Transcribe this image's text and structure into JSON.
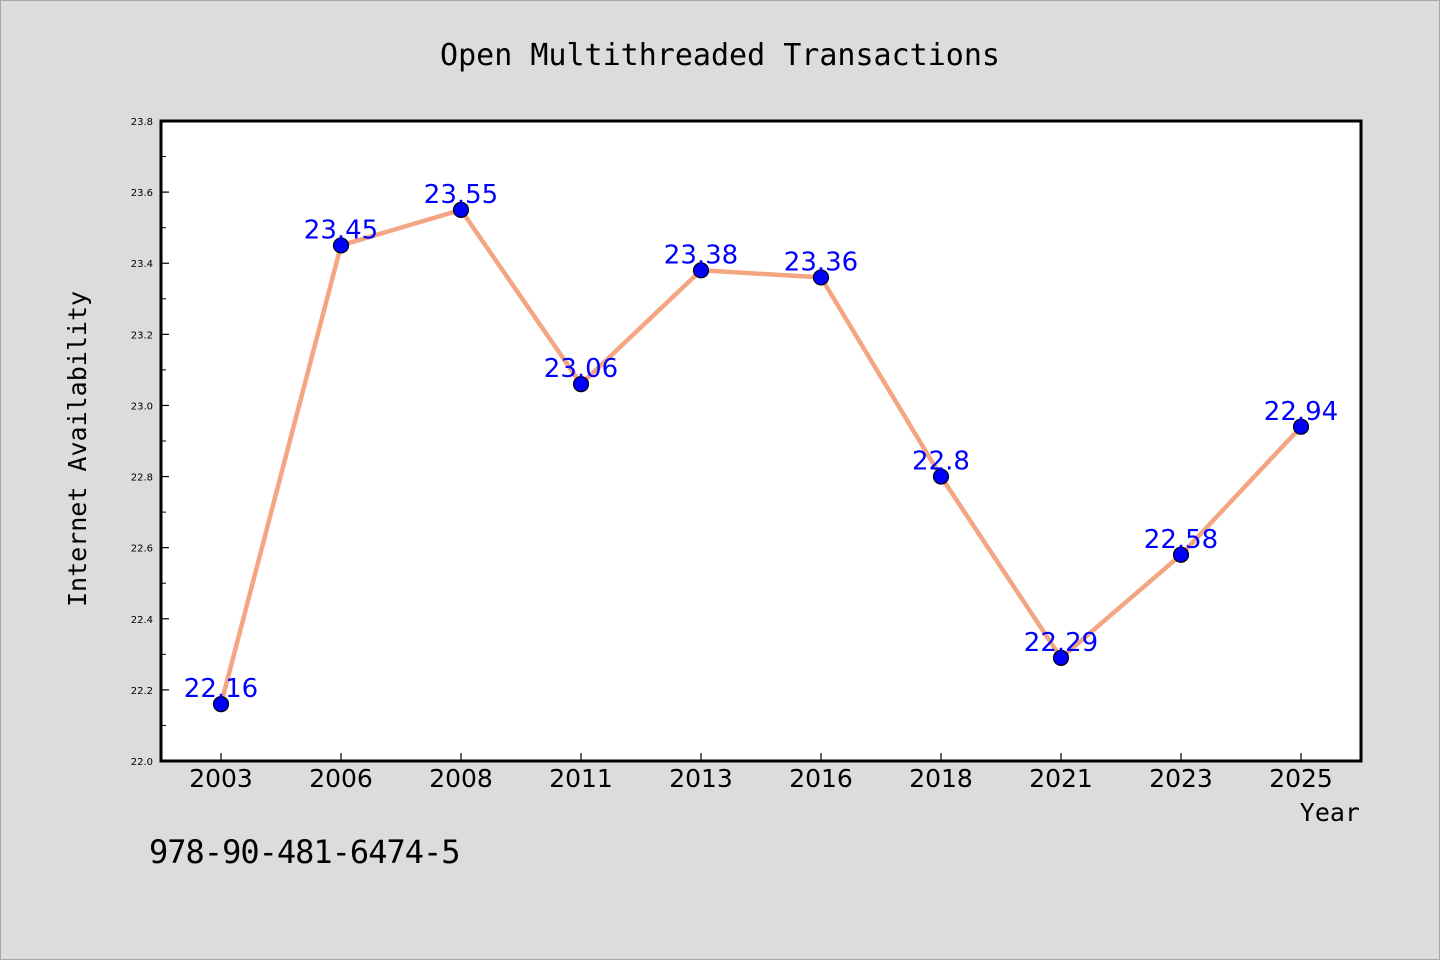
{
  "chart_data": {
    "type": "line",
    "title": "Open Multithreaded Transactions",
    "xlabel": "Year",
    "ylabel": "Internet Availability",
    "categories": [
      "2003",
      "2006",
      "2008",
      "2011",
      "2013",
      "2016",
      "2018",
      "2021",
      "2023",
      "2025"
    ],
    "series": [
      {
        "values": [
          22.16,
          23.45,
          23.55,
          23.06,
          23.38,
          23.36,
          22.8,
          22.29,
          22.58,
          22.94
        ]
      }
    ],
    "data_labels": [
      "22.16",
      "23.45",
      "23.55",
      "23.06",
      "23.38",
      "23.36",
      "22.8",
      "22.29",
      "22.58",
      "22.94"
    ],
    "ylim": [
      22.0,
      23.8
    ],
    "yticks": [
      "22.0",
      "22.2",
      "22.4",
      "22.6",
      "22.8",
      "23.0",
      "23.2",
      "23.4",
      "23.6",
      "23.8"
    ],
    "grid": false,
    "legend": "none",
    "colors": {
      "line": "#f4a582",
      "marker": "#0000ff",
      "label": "#0000ff",
      "background": "#dcdcdc",
      "plot_bg": "#ffffff"
    }
  },
  "footer": {
    "isbn": "978-90-481-6474-5"
  }
}
